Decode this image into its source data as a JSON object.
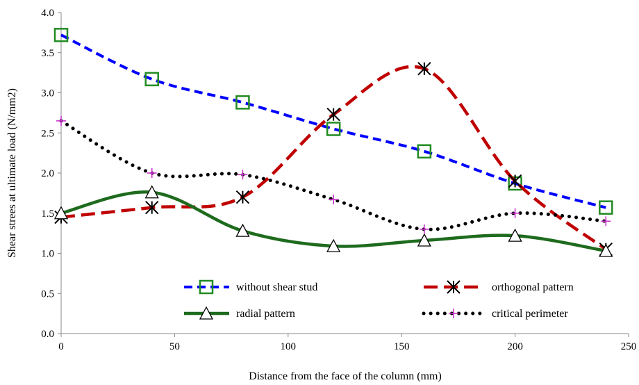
{
  "chart_data": {
    "type": "line",
    "title": "",
    "xlabel": "Distance from the face of the column (mm)",
    "ylabel": "Shear strees at ultimate load (N/mm2)",
    "xlim": [
      0,
      250
    ],
    "ylim": [
      0,
      4
    ],
    "xticks": [
      "0",
      "50",
      "100",
      "150",
      "200",
      "250"
    ],
    "yticks": [
      "0.0",
      "0.5",
      "1.0",
      "1.5",
      "2.0",
      "2.5",
      "3.0",
      "3.5",
      "4.0"
    ],
    "grid": false,
    "legend_position": "bottom-inside",
    "x": [
      0,
      40,
      80,
      120,
      160,
      200,
      240
    ],
    "series": [
      {
        "name": "without shear stud",
        "color": "#0000ff",
        "marker_color": "#228b22",
        "marker": "square",
        "line": "dashed",
        "values": [
          3.72,
          3.17,
          2.88,
          2.55,
          2.27,
          1.87,
          1.57
        ]
      },
      {
        "name": "orthogonal pattern",
        "color": "#c00000",
        "marker_color": "#000000",
        "marker": "star",
        "line": "long-dash",
        "values": [
          1.45,
          1.57,
          1.7,
          2.73,
          3.3,
          1.9,
          1.05
        ]
      },
      {
        "name": "radial pattern",
        "color": "#1e6b1e",
        "marker_color": "#000000",
        "marker": "triangle",
        "line": "solid",
        "values": [
          1.5,
          1.76,
          1.28,
          1.09,
          1.16,
          1.22,
          1.03
        ]
      },
      {
        "name": "critical perimeter",
        "color": "#000000",
        "marker_color": "#cc33cc",
        "marker": "plus",
        "line": "dotted",
        "values": [
          2.65,
          2.0,
          1.98,
          1.67,
          1.3,
          1.5,
          1.4
        ]
      }
    ]
  }
}
